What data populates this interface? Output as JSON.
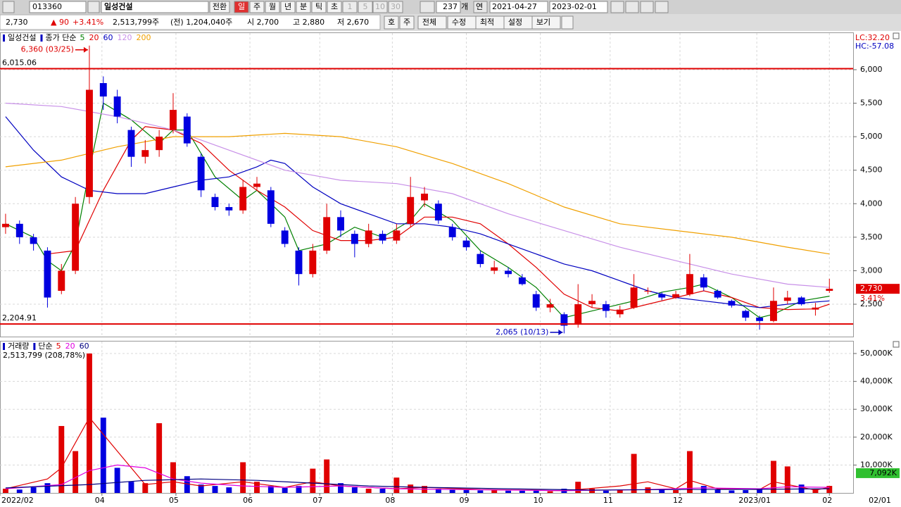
{
  "toolbar": {
    "code": "013360",
    "name": "일성건설",
    "buttons": [
      "전환",
      "일",
      "주",
      "월",
      "년",
      "분",
      "틱",
      "초",
      "1",
      "5",
      "10",
      "30"
    ],
    "count": "237",
    "count_unit": "개",
    "period": "연",
    "start": "2021-04-27",
    "end": "2023-02-01"
  },
  "infobar": {
    "price": "2,730",
    "change": "▲ 90",
    "rate": "+3.41%",
    "volume": "2,513,799주",
    "prev_volume": "(전) 1,204,040주",
    "open": "시 2,700",
    "high": "고 2,880",
    "low": "저 2,670",
    "buttons": [
      "호",
      "주",
      "전체",
      "수정",
      "최적",
      "설정",
      "보기"
    ]
  },
  "chart_data": [
    {
      "type": "candlestick",
      "name": "일성건설",
      "ma_label": "종가 단순",
      "up_color": "#e00000",
      "down_color": "#0000e0",
      "open": [
        3650,
        3700,
        3500,
        3300,
        2700,
        3000,
        4100,
        5800,
        5600,
        5100,
        4700,
        4800,
        5100,
        5300,
        4700,
        4100,
        3950,
        3900,
        4250,
        4200,
        3600,
        3300,
        2950,
        3300,
        3800,
        3550,
        3400,
        3550,
        3450,
        3700,
        4050,
        4000,
        3650,
        3450,
        3250,
        3000,
        3000,
        2900,
        2650,
        2450,
        2350,
        2200,
        2500,
        2500,
        2350,
        2450,
        2700,
        2650,
        2600,
        2650,
        2900,
        2700,
        2550,
        2400,
        2300,
        2250,
        2550,
        2600,
        2420,
        2700
      ],
      "high": [
        3850,
        3750,
        3550,
        3350,
        3100,
        4100,
        6360,
        5900,
        5700,
        5150,
        4950,
        5100,
        5650,
        5350,
        4750,
        4150,
        4000,
        4350,
        4400,
        4250,
        3650,
        3350,
        3400,
        4000,
        3900,
        3600,
        3700,
        3600,
        3700,
        4400,
        4250,
        4050,
        3700,
        3500,
        3300,
        3150,
        3050,
        2950,
        2700,
        2580,
        2380,
        2800,
        2650,
        2550,
        2480,
        2950,
        2750,
        2680,
        2700,
        3250,
        2950,
        2720,
        2570,
        2420,
        2330,
        2750,
        2700,
        2620,
        2520,
        2880
      ],
      "low": [
        3550,
        3400,
        3300,
        2450,
        2650,
        2950,
        4000,
        5400,
        5200,
        4550,
        4600,
        4700,
        5050,
        4850,
        4100,
        3900,
        3820,
        3850,
        4200,
        3650,
        3350,
        2780,
        2900,
        3250,
        3500,
        3200,
        3350,
        3400,
        3400,
        3650,
        3950,
        3700,
        3450,
        3300,
        3050,
        2950,
        2900,
        2780,
        2400,
        2380,
        2065,
        2150,
        2450,
        2300,
        2300,
        2430,
        2650,
        2560,
        2580,
        2620,
        2700,
        2580,
        2450,
        2250,
        2120,
        2230,
        2500,
        2480,
        2330,
        2670
      ],
      "close": [
        3700,
        3500,
        3400,
        2600,
        3000,
        4000,
        5700,
        5600,
        5300,
        4700,
        4800,
        5000,
        5400,
        4900,
        4200,
        3950,
        3900,
        4250,
        4300,
        3700,
        3400,
        2950,
        3300,
        3800,
        3600,
        3400,
        3600,
        3450,
        3600,
        4100,
        4150,
        3750,
        3500,
        3350,
        3100,
        3050,
        2950,
        2800,
        2450,
        2500,
        2180,
        2500,
        2550,
        2400,
        2420,
        2750,
        2700,
        2600,
        2650,
        2950,
        2750,
        2600,
        2480,
        2300,
        2250,
        2550,
        2600,
        2500,
        2450,
        2730
      ],
      "series": [
        {
          "name": "5",
          "color": "#008000",
          "x": [
            0,
            2,
            3,
            4,
            5,
            6,
            7,
            9,
            11,
            12,
            13,
            15,
            17,
            18,
            20,
            21,
            23,
            25,
            27,
            29,
            30,
            32,
            34,
            36,
            38,
            40,
            41,
            43,
            45,
            47,
            49,
            50,
            52,
            54,
            55,
            57,
            59
          ],
          "values": [
            3700,
            3500,
            3150,
            3000,
            3400,
            4500,
            5500,
            5250,
            4900,
            5100,
            5100,
            4400,
            4050,
            4200,
            3800,
            3300,
            3400,
            3650,
            3500,
            3750,
            4000,
            3750,
            3300,
            3050,
            2750,
            2300,
            2350,
            2450,
            2550,
            2680,
            2750,
            2800,
            2600,
            2300,
            2350,
            2550,
            2620
          ]
        },
        {
          "name": "20",
          "color": "#e00000",
          "x": [
            3,
            5,
            7,
            9,
            10,
            12,
            14,
            16,
            18,
            20,
            22,
            24,
            26,
            28,
            30,
            32,
            34,
            36,
            38,
            40,
            42,
            44,
            46,
            48,
            50,
            52,
            54,
            56,
            58,
            59
          ],
          "values": [
            3250,
            3300,
            4200,
            4950,
            5150,
            5100,
            4900,
            4500,
            4200,
            3950,
            3600,
            3450,
            3450,
            3500,
            3800,
            3800,
            3700,
            3400,
            3050,
            2650,
            2450,
            2400,
            2500,
            2600,
            2700,
            2600,
            2450,
            2420,
            2430,
            2500
          ]
        },
        {
          "name": "60",
          "color": "#0000c0",
          "x": [
            0,
            2,
            4,
            6,
            8,
            10,
            12,
            14,
            16,
            18,
            19,
            20,
            22,
            24,
            26,
            28,
            30,
            32,
            34,
            36,
            38,
            40,
            42,
            44,
            46,
            48,
            50,
            52,
            54,
            56,
            59
          ],
          "values": [
            5300,
            4800,
            4400,
            4200,
            4150,
            4150,
            4250,
            4350,
            4400,
            4550,
            4650,
            4600,
            4250,
            4000,
            3850,
            3700,
            3700,
            3650,
            3550,
            3400,
            3250,
            3100,
            3000,
            2850,
            2700,
            2600,
            2550,
            2500,
            2450,
            2500,
            2550
          ]
        },
        {
          "name": "120",
          "color": "#c890e8",
          "x": [
            0,
            4,
            8,
            12,
            16,
            20,
            24,
            28,
            32,
            36,
            40,
            44,
            48,
            52,
            56,
            59
          ],
          "values": [
            5500,
            5450,
            5300,
            5100,
            4800,
            4500,
            4350,
            4300,
            4150,
            3850,
            3600,
            3350,
            3150,
            2950,
            2800,
            2750
          ]
        },
        {
          "name": "200",
          "color": "#f0a000",
          "x": [
            0,
            4,
            8,
            12,
            16,
            20,
            24,
            28,
            32,
            36,
            40,
            44,
            48,
            52,
            56,
            59
          ],
          "values": [
            4550,
            4650,
            4850,
            5000,
            5000,
            5050,
            5000,
            4850,
            4600,
            4300,
            3950,
            3700,
            3600,
            3500,
            3350,
            3250
          ]
        }
      ],
      "xlim": [
        -0.4,
        60.7
      ],
      "ylim": [
        2017,
        6546
      ],
      "yticks": [
        {
          "value": 2500,
          "label": "2,500"
        },
        {
          "value": 3000,
          "label": "3,000"
        },
        {
          "value": 3500,
          "label": "3,500"
        },
        {
          "value": 4000,
          "label": "4,000"
        },
        {
          "value": 4500,
          "label": "4,500"
        },
        {
          "value": 5000,
          "label": "5,000"
        },
        {
          "value": 5500,
          "label": "5,500"
        },
        {
          "value": 6000,
          "label": "6,000"
        }
      ],
      "hlines": [
        {
          "value": 6015.06,
          "label": "6,015.06"
        },
        {
          "value": 2204.91,
          "label": "2,204.91"
        }
      ],
      "annotations": [
        {
          "text": "6,360 (03/25)",
          "x": 6,
          "y": 6360,
          "color": "#e00000"
        },
        {
          "text": "2,065 (10/13)",
          "x": 40,
          "y": 2065,
          "color": "#0000c0"
        }
      ],
      "last": {
        "value": 2730,
        "label": "2,730",
        "rate": "3.41%"
      },
      "corner_labels": [
        {
          "text": "LC:32.20",
          "color": "#e00000"
        },
        {
          "text": "HC:-57.08",
          "color": "#0000c0"
        }
      ],
      "grid": true
    },
    {
      "type": "bar",
      "name": "거래량",
      "ma_label": "단순",
      "value_label": "2,513,799 (208,78%)",
      "values": [
        1500,
        1200,
        2000,
        3500,
        24000,
        15000,
        50000,
        27000,
        9000,
        4000,
        3500,
        25000,
        11000,
        6000,
        3000,
        2500,
        2000,
        11000,
        4000,
        2500,
        1800,
        2500,
        8700,
        12000,
        3500,
        2000,
        1500,
        1500,
        5500,
        3000,
        2500,
        1500,
        1200,
        1000,
        900,
        1000,
        800,
        800,
        900,
        600,
        1500,
        4000,
        1500,
        800,
        1000,
        14000,
        2000,
        1200,
        1000,
        15000,
        2500,
        1200,
        900,
        1000,
        1500,
        11500,
        9500,
        3000,
        1500,
        2514
      ],
      "series": [
        {
          "name": "5",
          "color": "#e00000",
          "x": [
            0,
            3,
            4,
            6,
            8,
            10,
            12,
            14,
            17,
            20,
            22,
            24,
            28,
            30,
            34,
            40,
            44,
            46,
            48,
            49,
            51,
            54,
            55,
            56,
            58,
            59
          ],
          "values": [
            1500,
            5000,
            9000,
            27000,
            15000,
            3000,
            4000,
            2500,
            4000,
            2000,
            4000,
            2500,
            1500,
            2000,
            1200,
            800,
            2500,
            4000,
            1500,
            4500,
            1500,
            1200,
            4000,
            3000,
            1000,
            2000
          ]
        },
        {
          "name": "20",
          "color": "#e000e0",
          "x": [
            0,
            4,
            6,
            8,
            10,
            12,
            14,
            17,
            20,
            24,
            28,
            32,
            40,
            46,
            50,
            54,
            56,
            59
          ],
          "values": [
            1500,
            3000,
            8000,
            10000,
            9000,
            5000,
            3500,
            2500,
            2000,
            2500,
            1500,
            1200,
            800,
            1200,
            1800,
            1500,
            2200,
            2000
          ]
        },
        {
          "name": "60",
          "color": "#000080",
          "x": [
            0,
            6,
            10,
            14,
            18,
            22,
            26,
            30,
            36,
            42,
            48,
            54,
            59
          ],
          "values": [
            1800,
            3000,
            4500,
            5000,
            4500,
            3500,
            2500,
            2000,
            1500,
            1000,
            1200,
            1300,
            1500
          ]
        }
      ],
      "xlim": [
        -0.4,
        60.7
      ],
      "ylim": [
        0,
        54300
      ],
      "yticks": [
        {
          "value": 10000,
          "label": "10,000K"
        },
        {
          "value": 20000,
          "label": "20,000K"
        },
        {
          "value": 30000,
          "label": "30,000K"
        },
        {
          "value": 40000,
          "label": "40,000K"
        },
        {
          "value": 50000,
          "label": "50,000K"
        }
      ],
      "xticks": [
        {
          "value": -0.4,
          "label": "2022/02"
        },
        {
          "value": 6.9,
          "label": "04"
        },
        {
          "value": 12.2,
          "label": "05"
        },
        {
          "value": 17.5,
          "label": "06"
        },
        {
          "value": 22.5,
          "label": "07"
        },
        {
          "value": 27.7,
          "label": "08"
        },
        {
          "value": 33.0,
          "label": "09"
        },
        {
          "value": 38.3,
          "label": "10"
        },
        {
          "value": 43.3,
          "label": "11"
        },
        {
          "value": 48.3,
          "label": "12"
        },
        {
          "value": 53.8,
          "label": "2023/01"
        },
        {
          "value": 59.0,
          "label": "02"
        }
      ],
      "x_end_label": "02/01",
      "last": {
        "value": 7092,
        "label": "7,092K"
      },
      "grid": true
    }
  ]
}
